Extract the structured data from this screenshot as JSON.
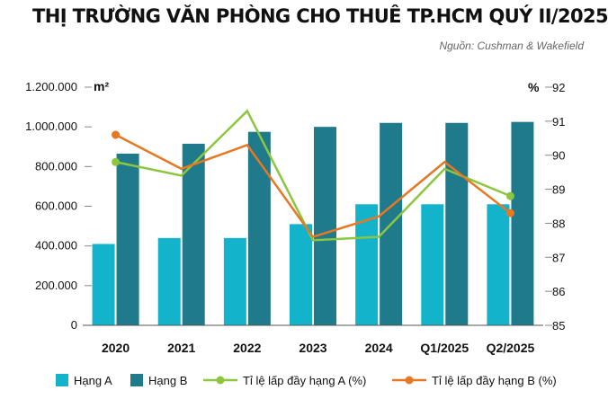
{
  "title": "THỊ TRƯỜNG VĂN PHÒNG CHO THUÊ TP.HCM QUÝ II/2025",
  "source": "Nguồn: Cushman & Wakefield",
  "colors": {
    "hang_a_bar": "#14b3cc",
    "hang_b_bar": "#1f7a8c",
    "line_a": "#8cc63f",
    "line_b": "#e87722",
    "grid": "#888888"
  },
  "chart_data": {
    "type": "bar",
    "categories": [
      "2020",
      "2021",
      "2022",
      "2023",
      "2024",
      "Q1/2025",
      "Q2/2025"
    ],
    "left_axis_unit": "m²",
    "right_axis_unit": "%",
    "left_ticks": [
      "1.200.000",
      "1.000.000",
      "800.000",
      "600.000",
      "400.000",
      "200.000",
      "0"
    ],
    "right_ticks": [
      "92",
      "91",
      "90",
      "89",
      "88",
      "87",
      "86",
      "85"
    ],
    "ylim_left": [
      0,
      1200000
    ],
    "ylim_right": [
      85,
      92
    ],
    "bar_series": [
      {
        "name": "Hạng A",
        "values": [
          410000,
          440000,
          440000,
          510000,
          610000,
          610000,
          610000
        ]
      },
      {
        "name": "Hạng B",
        "values": [
          865000,
          915000,
          975000,
          1000000,
          1020000,
          1020000,
          1025000
        ]
      }
    ],
    "line_series": [
      {
        "name": "Tỉ lệ lấp đầy hạng A (%)",
        "values": [
          89.8,
          89.4,
          91.3,
          87.5,
          87.6,
          89.6,
          88.8
        ]
      },
      {
        "name": "Tỉ lệ lấp đầy hạng B (%)",
        "values": [
          90.6,
          89.6,
          90.3,
          87.6,
          88.2,
          89.8,
          88.3
        ]
      }
    ],
    "grid": true,
    "legend_position": "bottom"
  }
}
